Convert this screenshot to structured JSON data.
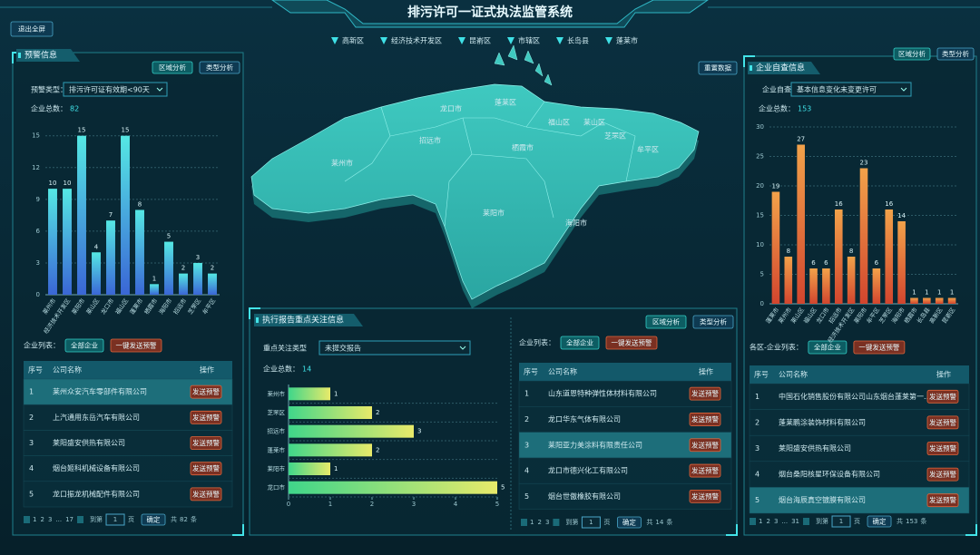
{
  "header": {
    "title": "排污许可一证式执法监管系统",
    "exit_button": "退出全屏"
  },
  "region_legend": [
    "高新区",
    "经济技术开发区",
    "昆嵛区",
    "市辖区",
    "长岛县",
    "蓬莱市"
  ],
  "map": {
    "reset_button": "重置数据",
    "labels": [
      "龙口市",
      "蓬莱区",
      "福山区",
      "芝罘区",
      "莱山区",
      "招远市",
      "栖霞市",
      "牟平区",
      "莱州市",
      "莱阳市",
      "海阳市"
    ]
  },
  "left_panel": {
    "title": "预警信息",
    "buttons": [
      "区域分析",
      "类型分析"
    ],
    "filter_label": "预警类型：",
    "filter_value": "排污许可证有效期<90天",
    "total_label": "企业总数：",
    "total": 82,
    "list_label": "企业列表：",
    "list_buttons": [
      "全部企业",
      "一键发送预警"
    ],
    "table": {
      "columns": [
        "序号",
        "公司名称",
        "操作"
      ],
      "rows": [
        [
          1,
          "莱州众安汽车零部件有限公司",
          "发送预警"
        ],
        [
          2,
          "上汽通用东岳汽车有限公司",
          "发送预警"
        ],
        [
          3,
          "莱阳盛安供热有限公司",
          "发送预警"
        ],
        [
          4,
          "烟台姬科机械设备有限公司",
          "发送预警"
        ],
        [
          5,
          "龙口振龙机械配件有限公司",
          "发送预警"
        ]
      ]
    },
    "pagination": {
      "pages": [
        "1",
        "2",
        "3",
        "...",
        "17"
      ],
      "goto": [
        "到第",
        "1",
        "页"
      ],
      "confirm": "确定",
      "total_text": [
        "共",
        "条"
      ]
    }
  },
  "middle_panel": {
    "title": "执行报告重点关注信息",
    "buttons": [
      "区域分析",
      "类型分析"
    ],
    "filter_label": "重点关注类型",
    "filter_value": "未提交报告",
    "total_label": "企业总数：",
    "total": 14,
    "list_label": "企业列表：",
    "list_buttons": [
      "全部企业",
      "一键发送预警"
    ],
    "table": {
      "columns": [
        "序号",
        "公司名称",
        "操作"
      ],
      "rows": [
        [
          1,
          "山东道恩特种弹性体材料有限公司",
          "发送预警"
        ],
        [
          2,
          "龙口华东气体有限公司",
          "发送预警"
        ],
        [
          3,
          "莱阳亚力美涂料有限责任公司",
          "发送预警"
        ],
        [
          4,
          "龙口市德兴化工有限公司",
          "发送预警"
        ],
        [
          5,
          "烟台世傲橡胶有限公司",
          "发送预警"
        ]
      ]
    },
    "pagination": {
      "pages": [
        "1",
        "2",
        "3"
      ],
      "goto": [
        "到第",
        "1",
        "页"
      ],
      "confirm": "确定",
      "total_text": [
        "共",
        "条"
      ]
    }
  },
  "right_panel": {
    "title": "企业自查信息",
    "buttons": [
      "区域分析",
      "类型分析"
    ],
    "filter_label": "企业自查类型：",
    "filter_value": "基本信息变化未变更许可",
    "total_label": "企业总数：",
    "total": 153,
    "list_label": "各区-企业列表：",
    "list_buttons": [
      "全部企业",
      "一键发送预警"
    ],
    "table": {
      "columns": [
        "序号",
        "公司名称",
        "操作"
      ],
      "rows": [
        [
          1,
          "中国石化销售股份有限公司山东烟台蓬莱第一...",
          "发送预警"
        ],
        [
          2,
          "蓬莱鹏涂装饰材料有限公司",
          "发送预警"
        ],
        [
          3,
          "莱阳盛安供热有限公司",
          "发送预警"
        ],
        [
          4,
          "烟台桑阳核星环保设备有限公司",
          "发送预警"
        ],
        [
          5,
          "烟台海辰真空镀膜有限公司",
          "发送预警"
        ]
      ]
    },
    "pagination": {
      "pages": [
        "1",
        "2",
        "3",
        "...",
        "31"
      ],
      "goto": [
        "到第",
        "1",
        "页"
      ],
      "confirm": "确定",
      "total_text": [
        "共",
        "条"
      ]
    }
  },
  "chart_data": [
    {
      "type": "bar",
      "orientation": "vertical",
      "categories": [
        "莱州市",
        "经济技术开发区",
        "莱阳市",
        "莱山区",
        "龙口市",
        "福山区",
        "蓬莱市",
        "栖霞市",
        "海阳市",
        "招远市",
        "芝罘区",
        "牟平区"
      ],
      "values": [
        10,
        10,
        15,
        4,
        7,
        15,
        8,
        1,
        5,
        2,
        3,
        2
      ],
      "gradient": [
        "#55e8e4",
        "#3a66d6"
      ],
      "ylim": [
        0,
        16
      ],
      "yticks": [
        0,
        3,
        6,
        9,
        12,
        15
      ],
      "grid": true
    },
    {
      "type": "bar",
      "orientation": "horizontal",
      "categories": [
        "莱州市",
        "芝罘区",
        "招远市",
        "蓬莱市",
        "莱阳市",
        "龙口市"
      ],
      "values": [
        1,
        2,
        3,
        2,
        1,
        5
      ],
      "gradient": [
        "#3fd68a",
        "#e8ea6a"
      ],
      "xlim": [
        0,
        5
      ],
      "xticks": [
        0,
        1,
        2,
        3,
        4,
        5
      ],
      "grid": false
    },
    {
      "type": "bar",
      "orientation": "vertical",
      "categories": [
        "蓬莱市",
        "莱州市",
        "莱山区",
        "福山区",
        "龙口市",
        "招远市",
        "经济技术开发区",
        "莱阳市",
        "牟平区",
        "芝罘区",
        "海阳市",
        "栖霞市",
        "长岛县",
        "高新区",
        "昆嵛区"
      ],
      "values": [
        19,
        8,
        27,
        6,
        6,
        16,
        8,
        23,
        6,
        16,
        14,
        1,
        1,
        1,
        1
      ],
      "gradient": [
        "#f2a24a",
        "#d2452e"
      ],
      "ylim": [
        0,
        30
      ],
      "yticks": [
        0,
        5,
        10,
        15,
        20,
        25,
        30
      ],
      "grid": true
    }
  ]
}
